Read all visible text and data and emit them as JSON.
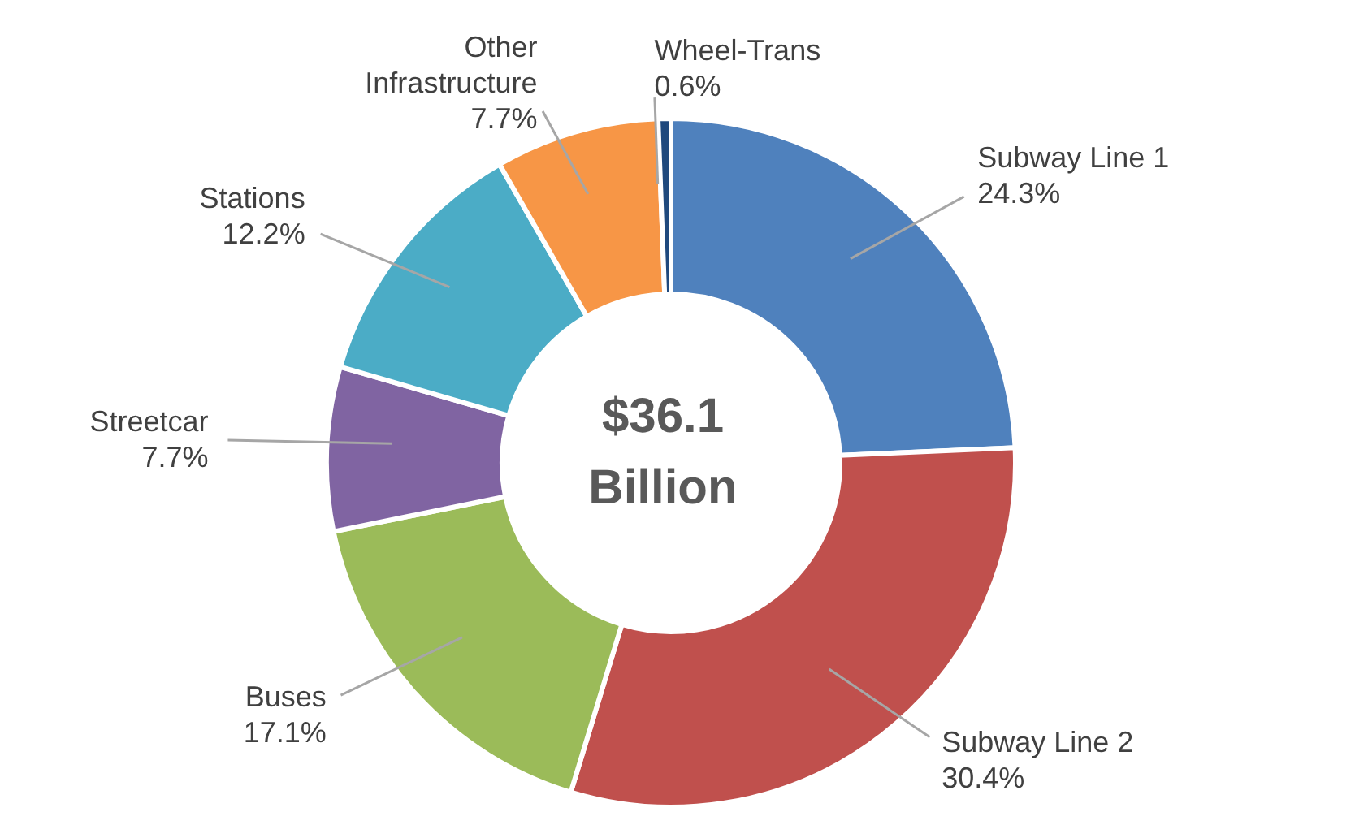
{
  "chart_data": {
    "type": "donut",
    "categories": [
      "Subway Line 1",
      "Subway Line 2",
      "Buses",
      "Streetcar",
      "Stations",
      "Other Infrastructure",
      "Wheel-Trans"
    ],
    "values": [
      24.3,
      30.4,
      17.1,
      7.7,
      12.2,
      7.7,
      0.6
    ],
    "value_labels": [
      "24.3%",
      "30.4%",
      "17.1%",
      "7.7%",
      "12.2%",
      "7.7%",
      "0.6%"
    ],
    "colors": [
      "#4f81bd",
      "#c0504d",
      "#9bbb59",
      "#8064a2",
      "#4bacc6",
      "#f79646",
      "#1f497d"
    ],
    "annotations": [
      "$36.1 Billion"
    ]
  }
}
